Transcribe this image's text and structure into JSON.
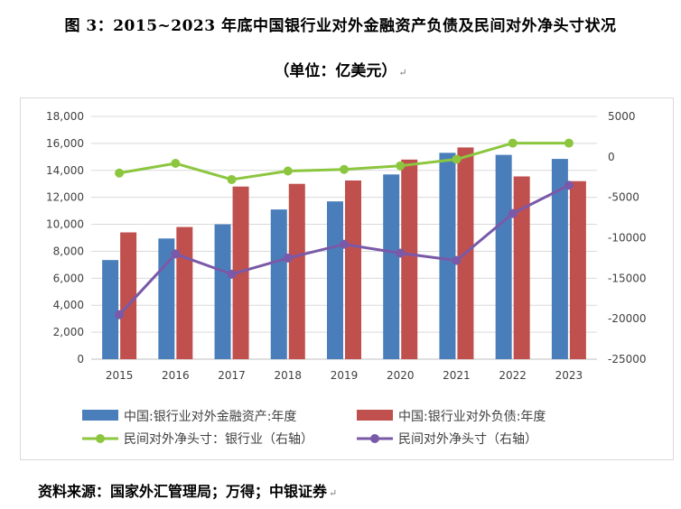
{
  "title": "图 3：2015~2023 年底中国银行业对外金融资产负债及民间对外净头寸状况",
  "unit_label": "（单位：亿美元）",
  "para_mark": "↵",
  "source": "资料来源：国家外汇管理局；万得；中银证券",
  "colors": {
    "assets": "#4a7ebb",
    "liabilities": "#c0504d",
    "bank_net": "#8cc63f",
    "private_net": "#7a59a8",
    "grid": "#d9d9d9",
    "axis_text": "#404040"
  },
  "chart_data": {
    "type": "bar",
    "categories": [
      "2015",
      "2016",
      "2017",
      "2018",
      "2019",
      "2020",
      "2021",
      "2022",
      "2023"
    ],
    "y_left": {
      "ylim": [
        0,
        18000
      ],
      "ticks": [
        "0",
        "2,000",
        "4,000",
        "6,000",
        "8,000",
        "10,000",
        "12,000",
        "14,000",
        "16,000",
        "18,000"
      ]
    },
    "y_right": {
      "ylim": [
        -25000,
        5000
      ],
      "ticks": [
        "5000",
        "0",
        "-5000",
        "-10000",
        "-15000",
        "-20000",
        "-25000"
      ]
    },
    "series": [
      {
        "name": "中国:银行业对外金融资产:年度",
        "type": "bar",
        "axis": "left",
        "values": [
          7350,
          8950,
          10000,
          11100,
          11700,
          13700,
          15300,
          15150,
          14850
        ]
      },
      {
        "name": "中国:银行业对外负债:年度",
        "type": "bar",
        "axis": "left",
        "values": [
          9400,
          9800,
          12800,
          13000,
          13250,
          14800,
          15700,
          13550,
          13200
        ]
      },
      {
        "name": "民间对外净头寸：银行业（右轴）",
        "type": "line",
        "axis": "right",
        "values": [
          -2000,
          -800,
          -2800,
          -1750,
          -1550,
          -1100,
          -300,
          1700,
          1700
        ]
      },
      {
        "name": "民间对外净头寸（右轴）",
        "type": "line",
        "axis": "right",
        "values": [
          -19500,
          -12000,
          -14500,
          -12500,
          -10800,
          -11900,
          -12800,
          -7000,
          -3500
        ]
      }
    ]
  }
}
